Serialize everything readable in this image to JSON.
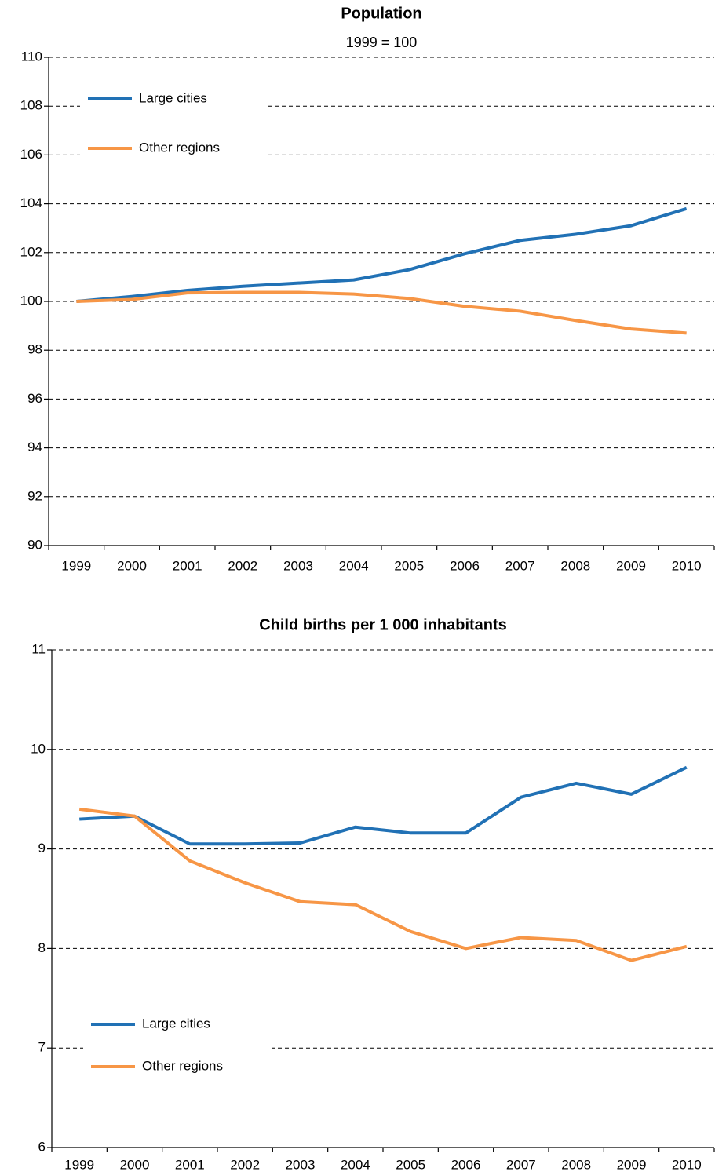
{
  "chart_data": [
    {
      "type": "line",
      "title": "Population",
      "subtitle": "1999 = 100",
      "categories": [
        "1999",
        "2000",
        "2001",
        "2002",
        "2003",
        "2004",
        "2005",
        "2006",
        "2007",
        "2008",
        "2009",
        "2010"
      ],
      "series": [
        {
          "name": "Large cities",
          "color": "#2171b5",
          "values": [
            100,
            100.2,
            100.45,
            100.62,
            100.75,
            100.88,
            101.3,
            101.95,
            102.5,
            102.75,
            103.1,
            103.8
          ]
        },
        {
          "name": "Other regions",
          "color": "#f79646",
          "values": [
            100,
            100.08,
            100.35,
            100.37,
            100.37,
            100.3,
            100.12,
            99.8,
            99.6,
            99.22,
            98.87,
            98.7
          ]
        }
      ],
      "ylim": [
        90,
        110
      ],
      "yticks": [
        90,
        92,
        94,
        96,
        98,
        100,
        102,
        104,
        106,
        108,
        110
      ],
      "grid": true,
      "legend": "upper left"
    },
    {
      "type": "line",
      "title": "Child births per 1 000 inhabitants",
      "categories": [
        "1999",
        "2000",
        "2001",
        "2002",
        "2003",
        "2004",
        "2005",
        "2006",
        "2007",
        "2008",
        "2009",
        "2010"
      ],
      "series": [
        {
          "name": "Large cities",
          "color": "#2171b5",
          "values": [
            9.3,
            9.33,
            9.05,
            9.05,
            9.06,
            9.22,
            9.16,
            9.16,
            9.52,
            9.66,
            9.55,
            9.82
          ]
        },
        {
          "name": "Other regions",
          "color": "#f79646",
          "values": [
            9.4,
            9.33,
            8.88,
            8.66,
            8.47,
            8.44,
            8.17,
            8.0,
            8.11,
            8.08,
            7.88,
            8.02
          ]
        }
      ],
      "ylim": [
        6,
        11
      ],
      "yticks": [
        6,
        7,
        8,
        9,
        10,
        11
      ],
      "grid": true,
      "legend": "lower left"
    }
  ]
}
